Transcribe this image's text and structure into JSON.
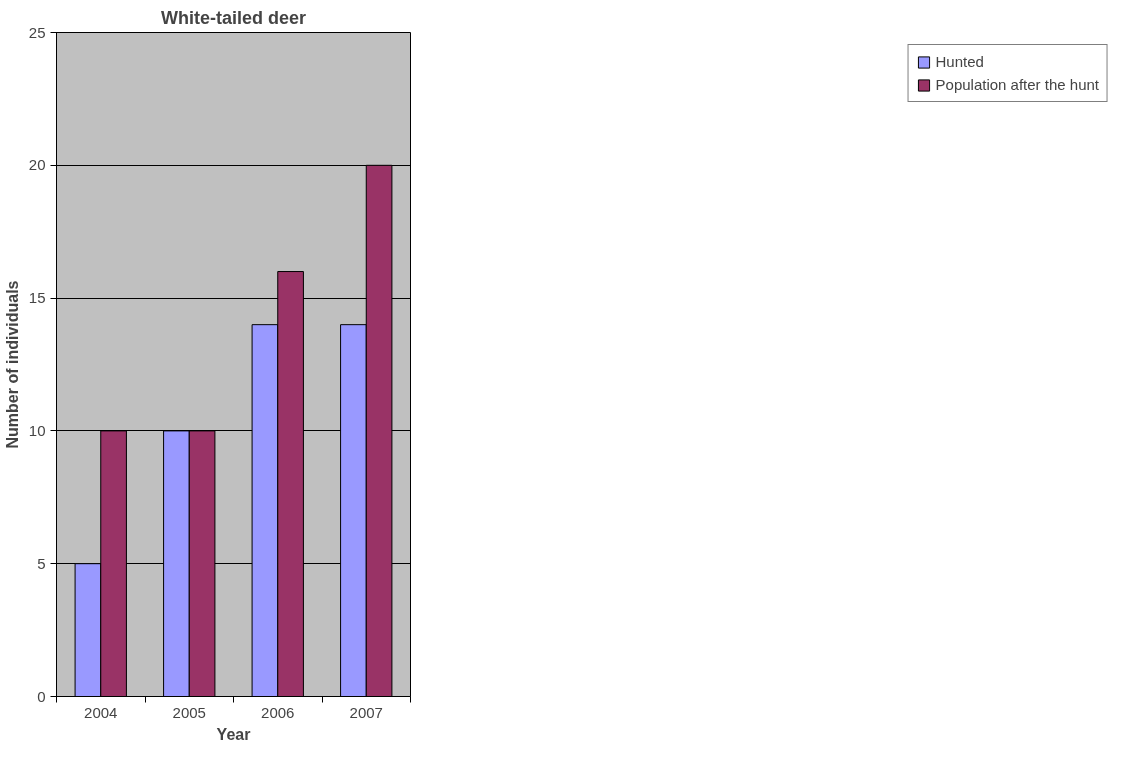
{
  "chart_data": {
    "type": "bar",
    "title": "White-tailed deer",
    "xlabel": "Year",
    "ylabel": "Number of individuals",
    "categories": [
      "2004",
      "2005",
      "2006",
      "2007"
    ],
    "series": [
      {
        "name": "Hunted",
        "color": "#9999ff",
        "values": [
          5,
          10,
          14,
          14
        ]
      },
      {
        "name": "Population after the hunt",
        "color": "#993366",
        "values": [
          10,
          10,
          16,
          20
        ]
      }
    ],
    "ylim": [
      0,
      25
    ],
    "yticks": [
      0,
      5,
      10,
      15,
      20,
      25
    ],
    "grid": "y",
    "legend": "right"
  }
}
